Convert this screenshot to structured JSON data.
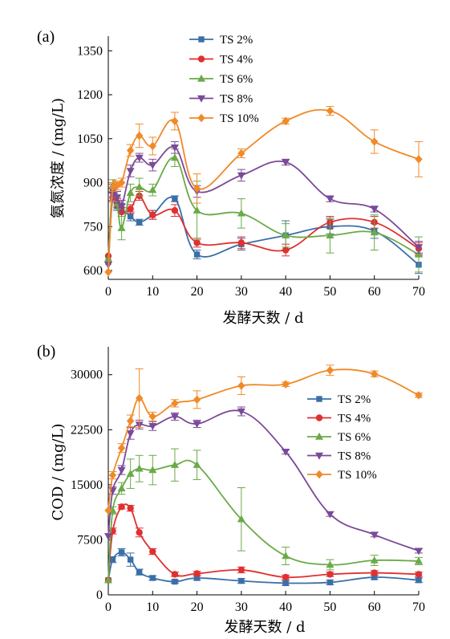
{
  "chart_data": [
    {
      "type": "line",
      "panel_label": "(a)",
      "xlabel": "发酵天数 / d",
      "ylabel": "氨氮浓度 / (mg/L)",
      "xlim": [
        0,
        70
      ],
      "ylim": [
        570,
        1400
      ],
      "xticks": [
        0,
        10,
        20,
        30,
        40,
        50,
        60,
        70
      ],
      "yticks": [
        600,
        750,
        900,
        1050,
        1200,
        1350
      ],
      "legend_position": "top-center",
      "series": [
        {
          "name": "TS 2%",
          "color": "#3a6fa8",
          "marker": "square",
          "x": [
            0,
            1,
            2,
            3,
            5,
            7,
            10,
            15,
            20,
            30,
            40,
            50,
            60,
            70
          ],
          "y": [
            630,
            880,
            820,
            810,
            785,
            765,
            790,
            845,
            655,
            690,
            720,
            750,
            735,
            620
          ],
          "err": [
            0,
            15,
            15,
            15,
            15,
            10,
            15,
            10,
            15,
            20,
            50,
            25,
            25,
            30
          ]
        },
        {
          "name": "TS 4%",
          "color": "#e03030",
          "marker": "circle",
          "x": [
            0,
            1,
            2,
            3,
            5,
            7,
            10,
            15,
            20,
            30,
            40,
            50,
            60,
            70
          ],
          "y": [
            650,
            850,
            830,
            800,
            810,
            855,
            790,
            805,
            695,
            695,
            670,
            765,
            765,
            675
          ],
          "err": [
            0,
            15,
            15,
            15,
            15,
            15,
            15,
            20,
            15,
            20,
            20,
            20,
            20,
            20
          ]
        },
        {
          "name": "TS 6%",
          "color": "#6aaa48",
          "marker": "triangle-up",
          "x": [
            0,
            1,
            2,
            3,
            5,
            7,
            10,
            15,
            20,
            30,
            40,
            50,
            60,
            70
          ],
          "y": [
            640,
            890,
            830,
            745,
            865,
            885,
            875,
            985,
            805,
            795,
            720,
            720,
            730,
            655
          ],
          "err": [
            0,
            20,
            20,
            40,
            30,
            30,
            20,
            30,
            100,
            50,
            40,
            60,
            60,
            60
          ]
        },
        {
          "name": "TS 8%",
          "color": "#7a4a98",
          "marker": "triangle-down",
          "x": [
            0,
            1,
            2,
            3,
            5,
            7,
            10,
            15,
            20,
            30,
            40,
            50,
            60,
            70
          ],
          "y": [
            620,
            860,
            850,
            820,
            940,
            985,
            960,
            1020,
            870,
            925,
            970,
            845,
            810,
            680
          ],
          "err": [
            0,
            20,
            20,
            20,
            20,
            15,
            20,
            20,
            20,
            20,
            10,
            10,
            10,
            20
          ]
        },
        {
          "name": "TS 10%",
          "color": "#f08a28",
          "marker": "diamond",
          "x": [
            0,
            1,
            2,
            3,
            5,
            7,
            10,
            15,
            20,
            30,
            40,
            50,
            60,
            70
          ],
          "y": [
            595,
            885,
            890,
            900,
            1010,
            1060,
            1025,
            1110,
            880,
            1000,
            1110,
            1145,
            1040,
            980
          ],
          "err": [
            0,
            15,
            15,
            15,
            20,
            40,
            30,
            30,
            50,
            15,
            10,
            15,
            40,
            60
          ]
        }
      ]
    },
    {
      "type": "line",
      "panel_label": "(b)",
      "xlabel": "发酵天数 / d",
      "ylabel": "COD / (mg/L)",
      "xlim": [
        0,
        70
      ],
      "ylim": [
        0,
        33800
      ],
      "xticks": [
        0,
        10,
        20,
        30,
        40,
        50,
        60,
        70
      ],
      "yticks": [
        0,
        7500,
        15000,
        22500,
        30000
      ],
      "legend_position": "right-center",
      "series": [
        {
          "name": "TS 2%",
          "color": "#3a6fa8",
          "marker": "square",
          "x": [
            0,
            1,
            3,
            5,
            7,
            10,
            15,
            20,
            30,
            40,
            50,
            60,
            70
          ],
          "y": [
            2000,
            4800,
            5800,
            4800,
            3100,
            2300,
            1800,
            2300,
            1900,
            1600,
            1700,
            2400,
            2000
          ],
          "err": [
            0,
            400,
            500,
            900,
            400,
            300,
            200,
            300,
            300,
            300,
            300,
            300,
            300
          ]
        },
        {
          "name": "TS 4%",
          "color": "#e03030",
          "marker": "circle",
          "x": [
            0,
            1,
            3,
            5,
            7,
            10,
            15,
            20,
            30,
            40,
            50,
            60,
            70
          ],
          "y": [
            2000,
            8700,
            12000,
            11800,
            8500,
            5900,
            2800,
            2900,
            3400,
            2400,
            2800,
            3000,
            2800
          ],
          "err": [
            0,
            400,
            300,
            400,
            600,
            400,
            300,
            300,
            400,
            300,
            300,
            300,
            300
          ]
        },
        {
          "name": "TS 6%",
          "color": "#6aaa48",
          "marker": "triangle-up",
          "x": [
            0,
            1,
            3,
            5,
            7,
            10,
            15,
            20,
            30,
            40,
            50,
            60,
            70
          ],
          "y": [
            2000,
            11500,
            14500,
            16500,
            17200,
            17000,
            17700,
            17700,
            10300,
            5300,
            4100,
            4700,
            4600
          ],
          "err": [
            0,
            500,
            800,
            2000,
            1800,
            2000,
            2200,
            2000,
            4300,
            1200,
            700,
            700,
            500
          ]
        },
        {
          "name": "TS 8%",
          "color": "#7a4a98",
          "marker": "triangle-down",
          "x": [
            0,
            1,
            3,
            5,
            7,
            10,
            15,
            20,
            30,
            40,
            50,
            60,
            70
          ],
          "y": [
            8000,
            14200,
            17000,
            22000,
            23200,
            23000,
            24300,
            23300,
            25000,
            19500,
            11000,
            8200,
            6000
          ],
          "err": [
            0,
            500,
            600,
            800,
            600,
            600,
            500,
            500,
            600,
            300,
            300,
            300,
            300
          ]
        },
        {
          "name": "TS 10%",
          "color": "#f08a28",
          "marker": "diamond",
          "x": [
            0,
            1,
            3,
            5,
            7,
            10,
            15,
            20,
            30,
            40,
            50,
            60,
            70
          ],
          "y": [
            11500,
            16300,
            20000,
            23700,
            26800,
            24300,
            26100,
            26600,
            28500,
            28700,
            30600,
            30100,
            27200
          ],
          "err": [
            0,
            500,
            600,
            800,
            4000,
            600,
            500,
            1200,
            1200,
            300,
            700,
            400,
            300
          ]
        }
      ]
    }
  ]
}
